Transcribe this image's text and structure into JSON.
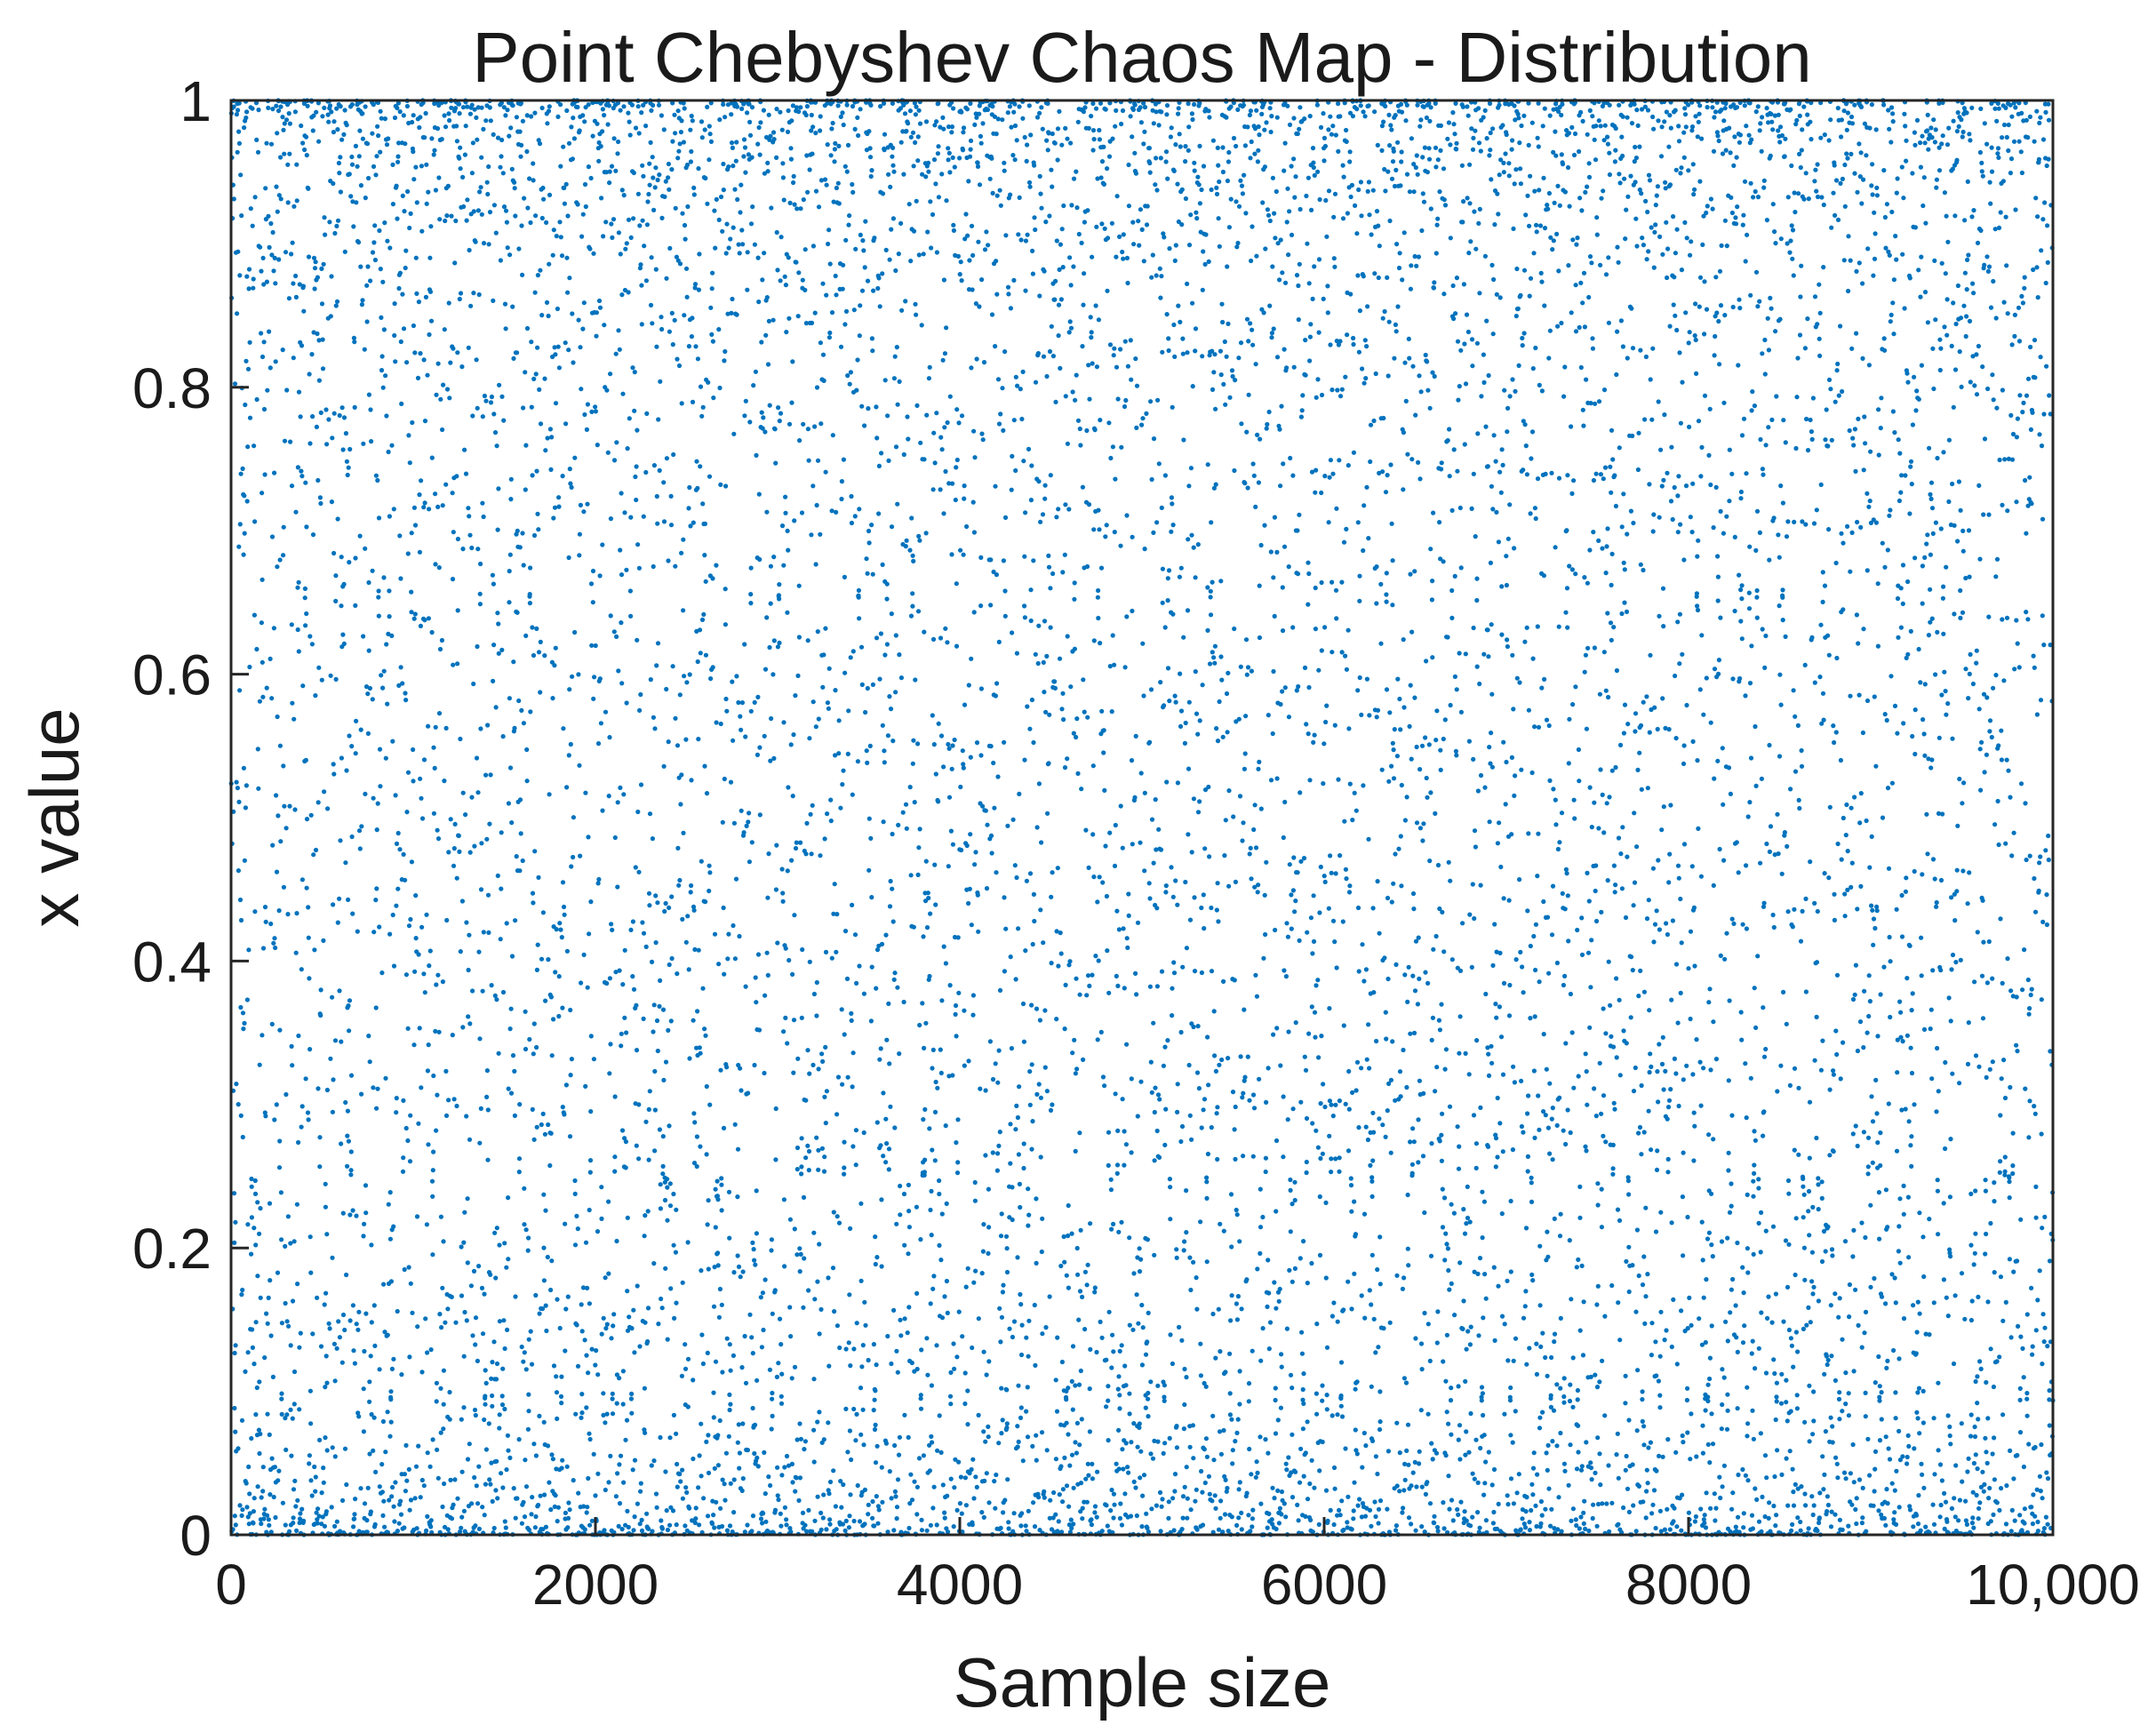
{
  "chart_data": {
    "type": "scatter",
    "title": "Point Chebyshev Chaos Map - Distribution",
    "xlabel": "Sample size",
    "ylabel": "x value",
    "xlim": [
      0,
      10000
    ],
    "ylim": [
      0,
      1
    ],
    "x_ticks": [
      0,
      2000,
      4000,
      6000,
      8000,
      10000
    ],
    "x_tick_labels": [
      "0",
      "2000",
      "4000",
      "6000",
      "8000",
      "10,000"
    ],
    "y_ticks": [
      0,
      0.2,
      0.4,
      0.6,
      0.8,
      1
    ],
    "y_tick_labels": [
      "0",
      "0.2",
      "0.4",
      "0.6",
      "0.8",
      "1"
    ],
    "grid": false,
    "legend": "none",
    "marker_color": "#0072BD",
    "series": [
      {
        "point_count": 10000,
        "x_start": 1,
        "x_step": 1,
        "generator": "chebyshev",
        "y_distribution": "arcsine (dense near 0 and 1)"
      }
    ]
  }
}
